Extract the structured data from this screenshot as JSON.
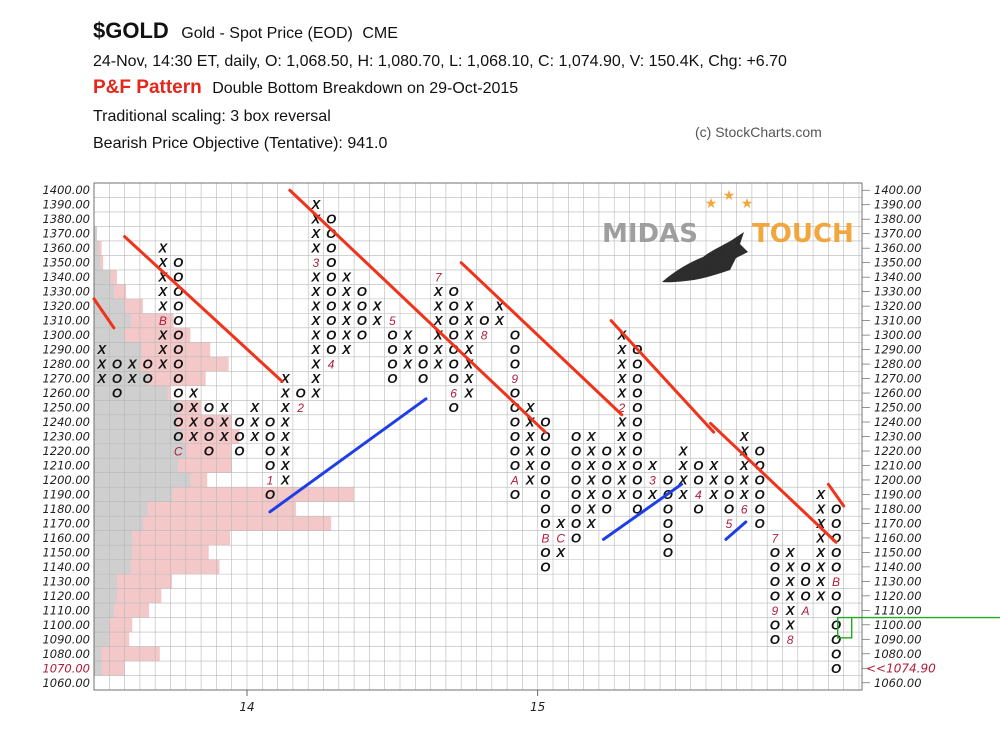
{
  "header": {
    "symbol": "$GOLD",
    "description": "Gold - Spot Price (EOD)",
    "exchange": "CME",
    "quote_line": "24-Nov, 14:30 ET, daily, O: 1,068.50, H: 1,080.70, L: 1,068.10, C: 1,074.90, V: 150.4K, Chg: +6.70",
    "pattern_label": "P&F Pattern",
    "pattern_text": "Double Bottom Breakdown on 29-Oct-2015",
    "scaling": "Traditional scaling: 3 box reversal",
    "objective": "Bearish Price Objective (Tentative): 941.0",
    "copyright": "(c) StockCharts.com"
  },
  "watermark": {
    "left": "MIDAS",
    "right": "TOUCH"
  },
  "colors": {
    "x_mark": "#111111",
    "o_mark": "#111111",
    "month_mark": "#b01c3a",
    "resistance": "#f0331b",
    "support": "#1f3fe6",
    "grid": "#b8b8b8",
    "volume_profile_gray": "#cfcfcf",
    "volume_profile_pink": "#f4c8c8",
    "current_price": "#b01c3a",
    "current_box": "#22aa22",
    "watermark_gold": "#f2a234",
    "watermark_gray": "#9a9a9a"
  },
  "chart_data": {
    "type": "point_and_figure",
    "box_size": 10,
    "reversal": 3,
    "y_axis": {
      "min": 1060,
      "max": 1400,
      "step": 10,
      "label_format": "2 decimals"
    },
    "x_axis": {
      "labels": [
        {
          "text": "14",
          "column": 10
        },
        {
          "text": "15",
          "column": 29
        }
      ]
    },
    "current_price": {
      "value": 1074.9,
      "label": "<<1074.90",
      "column": 48
    },
    "columns": [
      {
        "col": 0,
        "type": "X",
        "from": 1270,
        "to": 1290,
        "months": {}
      },
      {
        "col": 1,
        "type": "O",
        "from": 1260,
        "to": 1280,
        "months": {}
      },
      {
        "col": 2,
        "type": "X",
        "from": 1270,
        "to": 1280,
        "months": {}
      },
      {
        "col": 3,
        "type": "O",
        "from": 1270,
        "to": 1280,
        "months": {}
      },
      {
        "col": 4,
        "type": "X",
        "from": 1280,
        "to": 1360,
        "months": {
          "1310": "B"
        }
      },
      {
        "col": 5,
        "type": "O",
        "from": 1220,
        "to": 1350,
        "months": {
          "1220": "C"
        }
      },
      {
        "col": 6,
        "type": "X",
        "from": 1230,
        "to": 1260,
        "months": {}
      },
      {
        "col": 7,
        "type": "O",
        "from": 1220,
        "to": 1250,
        "months": {}
      },
      {
        "col": 8,
        "type": "X",
        "from": 1230,
        "to": 1250,
        "months": {}
      },
      {
        "col": 9,
        "type": "O",
        "from": 1220,
        "to": 1240,
        "months": {}
      },
      {
        "col": 10,
        "type": "X",
        "from": 1230,
        "to": 1250,
        "months": {}
      },
      {
        "col": 11,
        "type": "O",
        "from": 1190,
        "to": 1240,
        "months": {
          "1200": "1"
        }
      },
      {
        "col": 12,
        "type": "X",
        "from": 1200,
        "to": 1270,
        "months": {}
      },
      {
        "col": 13,
        "type": "O",
        "from": 1250,
        "to": 1260,
        "months": {
          "1250": "2"
        }
      },
      {
        "col": 14,
        "type": "X",
        "from": 1260,
        "to": 1390,
        "months": {
          "1350": "3"
        }
      },
      {
        "col": 15,
        "type": "O",
        "from": 1280,
        "to": 1380,
        "months": {
          "1280": "4"
        }
      },
      {
        "col": 16,
        "type": "X",
        "from": 1290,
        "to": 1340,
        "months": {}
      },
      {
        "col": 17,
        "type": "O",
        "from": 1300,
        "to": 1330,
        "months": {}
      },
      {
        "col": 18,
        "type": "X",
        "from": 1310,
        "to": 1320,
        "months": {}
      },
      {
        "col": 19,
        "type": "O",
        "from": 1270,
        "to": 1310,
        "months": {
          "1310": "5"
        }
      },
      {
        "col": 20,
        "type": "X",
        "from": 1280,
        "to": 1300,
        "months": {}
      },
      {
        "col": 21,
        "type": "O",
        "from": 1270,
        "to": 1290,
        "months": {}
      },
      {
        "col": 22,
        "type": "X",
        "from": 1280,
        "to": 1340,
        "months": {
          "1340": "7"
        }
      },
      {
        "col": 23,
        "type": "O",
        "from": 1250,
        "to": 1330,
        "months": {
          "1260": "6"
        }
      },
      {
        "col": 24,
        "type": "X",
        "from": 1260,
        "to": 1320,
        "months": {}
      },
      {
        "col": 25,
        "type": "O",
        "from": 1300,
        "to": 1310,
        "months": {
          "1300": "8"
        }
      },
      {
        "col": 26,
        "type": "X",
        "from": 1310,
        "to": 1320,
        "months": {}
      },
      {
        "col": 27,
        "type": "O",
        "from": 1190,
        "to": 1300,
        "months": {
          "1270": "9",
          "1200": "A"
        }
      },
      {
        "col": 28,
        "type": "X",
        "from": 1200,
        "to": 1250,
        "months": {}
      },
      {
        "col": 29,
        "type": "O",
        "from": 1140,
        "to": 1240,
        "months": {
          "1160": "B"
        }
      },
      {
        "col": 30,
        "type": "X",
        "from": 1150,
        "to": 1170,
        "months": {
          "1160": "C"
        }
      },
      {
        "col": 31,
        "type": "O",
        "from": 1160,
        "to": 1230,
        "months": {}
      },
      {
        "col": 32,
        "type": "X",
        "from": 1170,
        "to": 1230,
        "months": {}
      },
      {
        "col": 33,
        "type": "O",
        "from": 1180,
        "to": 1220,
        "months": {}
      },
      {
        "col": 34,
        "type": "X",
        "from": 1190,
        "to": 1300,
        "months": {
          "1170": "1",
          "1250": "2"
        }
      },
      {
        "col": 35,
        "type": "O",
        "from": 1180,
        "to": 1290,
        "months": {}
      },
      {
        "col": 36,
        "type": "X",
        "from": 1190,
        "to": 1210,
        "months": {
          "1200": "3"
        }
      },
      {
        "col": 37,
        "type": "O",
        "from": 1150,
        "to": 1200,
        "months": {}
      },
      {
        "col": 38,
        "type": "X",
        "from": 1190,
        "to": 1220,
        "months": {}
      },
      {
        "col": 39,
        "type": "O",
        "from": 1180,
        "to": 1210,
        "months": {
          "1190": "4"
        }
      },
      {
        "col": 40,
        "type": "X",
        "from": 1190,
        "to": 1210,
        "months": {}
      },
      {
        "col": 41,
        "type": "O",
        "from": 1170,
        "to": 1200,
        "months": {
          "1170": "5"
        }
      },
      {
        "col": 42,
        "type": "X",
        "from": 1180,
        "to": 1230,
        "months": {
          "1180": "6"
        }
      },
      {
        "col": 43,
        "type": "O",
        "from": 1170,
        "to": 1220,
        "months": {}
      },
      {
        "col": 44,
        "type": "O",
        "from": 1090,
        "to": 1160,
        "months": {
          "1160": "7",
          "1110": "9"
        }
      },
      {
        "col": 45,
        "type": "X",
        "from": 1090,
        "to": 1150,
        "months": {
          "1090": "8"
        }
      },
      {
        "col": 46,
        "type": "O",
        "from": 1110,
        "to": 1140,
        "months": {
          "1110": "A"
        }
      },
      {
        "col": 47,
        "type": "X",
        "from": 1120,
        "to": 1190,
        "months": {}
      },
      {
        "col": 48,
        "type": "O",
        "from": 1070,
        "to": 1180,
        "months": {
          "1130": "B"
        }
      }
    ],
    "trendlines": [
      {
        "kind": "resistance",
        "from": {
          "col": 0,
          "price": 1325
        },
        "to": {
          "col": 1.3,
          "price": 1305
        }
      },
      {
        "kind": "resistance",
        "from": {
          "col": 2,
          "price": 1368
        },
        "to": {
          "col": 12.3,
          "price": 1268
        }
      },
      {
        "kind": "resistance",
        "from": {
          "col": 12.8,
          "price": 1400
        },
        "to": {
          "col": 29.5,
          "price": 1233
        }
      },
      {
        "kind": "resistance",
        "from": {
          "col": 24,
          "price": 1350
        },
        "to": {
          "col": 34.5,
          "price": 1245
        }
      },
      {
        "kind": "resistance",
        "from": {
          "col": 33.8,
          "price": 1310
        },
        "to": {
          "col": 40.5,
          "price": 1233
        }
      },
      {
        "kind": "resistance",
        "from": {
          "col": 40.3,
          "price": 1239
        },
        "to": {
          "col": 48.5,
          "price": 1157
        }
      },
      {
        "kind": "resistance",
        "from": {
          "col": 48,
          "price": 1197
        },
        "to": {
          "col": 49,
          "price": 1182
        }
      },
      {
        "kind": "support",
        "from": {
          "col": 11.5,
          "price": 1178
        },
        "to": {
          "col": 21.7,
          "price": 1256
        }
      },
      {
        "kind": "support",
        "from": {
          "col": 33.3,
          "price": 1159
        },
        "to": {
          "col": 38.4,
          "price": 1197
        }
      },
      {
        "kind": "support",
        "from": {
          "col": 41.3,
          "price": 1159
        },
        "to": {
          "col": 42.6,
          "price": 1171
        }
      }
    ],
    "volume_profile": [
      {
        "price": 1370,
        "gray": 0.2,
        "pink": 0
      },
      {
        "price": 1360,
        "gray": 0.3,
        "pink": 0.5
      },
      {
        "price": 1350,
        "gray": 0.4,
        "pink": 0.6
      },
      {
        "price": 1340,
        "gray": 1.1,
        "pink": 1.5
      },
      {
        "price": 1330,
        "gray": 1.3,
        "pink": 2.1
      },
      {
        "price": 1320,
        "gray": 2.0,
        "pink": 3.2
      },
      {
        "price": 1310,
        "gray": 2.4,
        "pink": 5.2
      },
      {
        "price": 1300,
        "gray": 2.0,
        "pink": 6.3
      },
      {
        "price": 1290,
        "gray": 3.1,
        "pink": 7.6
      },
      {
        "price": 1280,
        "gray": 3.0,
        "pink": 8.8
      },
      {
        "price": 1270,
        "gray": 3.6,
        "pink": 7.3
      },
      {
        "price": 1260,
        "gray": 4.8,
        "pink": 5.0
      },
      {
        "price": 1250,
        "gray": 5.5,
        "pink": 7.0
      },
      {
        "price": 1240,
        "gray": 5.4,
        "pink": 9.0
      },
      {
        "price": 1230,
        "gray": 5.8,
        "pink": 9.5
      },
      {
        "price": 1220,
        "gray": 6.0,
        "pink": 9.0
      },
      {
        "price": 1210,
        "gray": 5.5,
        "pink": 9.0
      },
      {
        "price": 1200,
        "gray": 6.3,
        "pink": 7.4
      },
      {
        "price": 1190,
        "gray": 5.1,
        "pink": 17.0
      },
      {
        "price": 1180,
        "gray": 3.5,
        "pink": 13.2
      },
      {
        "price": 1170,
        "gray": 3.2,
        "pink": 15.5
      },
      {
        "price": 1160,
        "gray": 2.5,
        "pink": 8.9
      },
      {
        "price": 1150,
        "gray": 2.5,
        "pink": 7.5
      },
      {
        "price": 1140,
        "gray": 2.4,
        "pink": 8.2
      },
      {
        "price": 1130,
        "gray": 1.5,
        "pink": 5.1
      },
      {
        "price": 1120,
        "gray": 1.5,
        "pink": 4.4
      },
      {
        "price": 1110,
        "gray": 1.3,
        "pink": 3.6
      },
      {
        "price": 1100,
        "gray": 1.0,
        "pink": 2.5
      },
      {
        "price": 1090,
        "gray": 1.0,
        "pink": 2.3
      },
      {
        "price": 1080,
        "gray": 0.5,
        "pink": 4.3
      },
      {
        "price": 1070,
        "gray": 0.5,
        "pink": 2.0
      }
    ]
  }
}
